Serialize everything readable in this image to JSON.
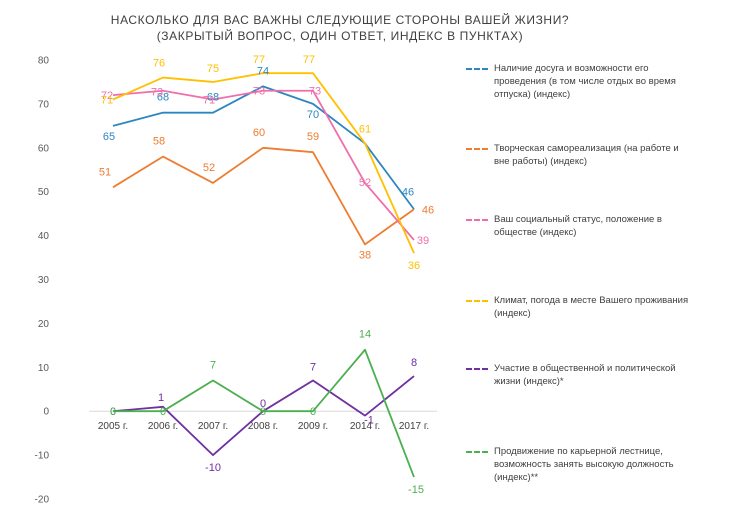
{
  "title_lines": [
    "НАСКОЛЬКО ДЛЯ ВАС ВАЖНЫ СЛЕДУЮЩИЕ СТОРОНЫ ВАШЕЙ ЖИЗНИ?",
    "(ЗАКРЫТЫЙ ВОПРОС, ОДИН ОТВЕТ, ИНДЕКС В ПУНКТАХ)"
  ],
  "chart_data": {
    "type": "line",
    "categories": [
      "2005 г.",
      "2006 г.",
      "2007 г.",
      "2008 г.",
      "2009 г.",
      "2014 г.",
      "2017 г."
    ],
    "ylim": [
      -20,
      80
    ],
    "yticks": [
      -20,
      -10,
      0,
      10,
      20,
      30,
      40,
      50,
      60,
      70,
      80
    ],
    "grid": false,
    "legend_position": "right",
    "series": [
      {
        "name": "Наличие досуга и возможности его проведения (в том числе отдых во время отпуска) (индекс)",
        "color": "#2e86c1",
        "values": [
          65,
          68,
          68,
          74,
          70,
          61,
          46
        ],
        "labels": [
          "65",
          "68",
          "68",
          "74",
          "70",
          "",
          "46"
        ]
      },
      {
        "name": "Творческая самореализация (на работе и вне работы) (индекс)",
        "color": "#ed7d31",
        "values": [
          51,
          58,
          52,
          60,
          59,
          38,
          46
        ],
        "labels": [
          "51",
          "58",
          "52",
          "60",
          "59",
          "38",
          "46"
        ]
      },
      {
        "name": "Ваш социальный статус, положение в обществе (индекс)",
        "color": "#f06ea9",
        "values": [
          72,
          73,
          71,
          73,
          73,
          52,
          39
        ],
        "labels": [
          "72",
          "73",
          "71",
          "73",
          "73",
          "52",
          "39"
        ]
      },
      {
        "name": "Климат, погода в месте Вашего проживания (индекс)",
        "color": "#ffc000",
        "values": [
          71,
          76,
          75,
          77,
          77,
          61,
          36
        ],
        "labels": [
          "71",
          "76",
          "75",
          "77",
          "77",
          "61",
          "36"
        ]
      },
      {
        "name": "Участие в общественной и политической жизни (индекс)*",
        "color": "#7030a0",
        "values": [
          0,
          1,
          -10,
          0,
          7,
          -1,
          8
        ],
        "labels": [
          "0",
          "1",
          "-10",
          "0",
          "7",
          "-1",
          "8"
        ]
      },
      {
        "name": "Продвижение по карьерной лестнице, возможность занять высокую должность (индекс)**",
        "color": "#4caf50",
        "values": [
          0,
          0,
          7,
          0,
          0,
          14,
          -15
        ],
        "labels": [
          "0",
          "0",
          "7",
          "0",
          "0",
          "14",
          "-15"
        ]
      }
    ]
  }
}
